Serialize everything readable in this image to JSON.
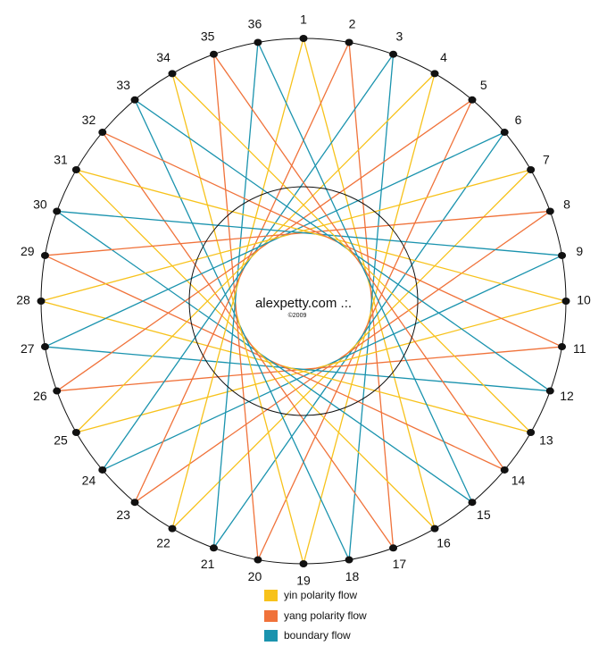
{
  "points": [
    "1",
    "2",
    "3",
    "4",
    "5",
    "6",
    "7",
    "8",
    "9",
    "10",
    "11",
    "12",
    "13",
    "14",
    "15",
    "16",
    "17",
    "18",
    "19",
    "20",
    "21",
    "22",
    "23",
    "24",
    "25",
    "26",
    "27",
    "28",
    "29",
    "30",
    "31",
    "32",
    "33",
    "34",
    "35",
    "36"
  ],
  "center": {
    "site": "alexpetty.com .:.",
    "copyright": "©2009"
  },
  "legend": [
    "yin polarity flow",
    "yang polarity flow",
    "boundary flow"
  ]
}
